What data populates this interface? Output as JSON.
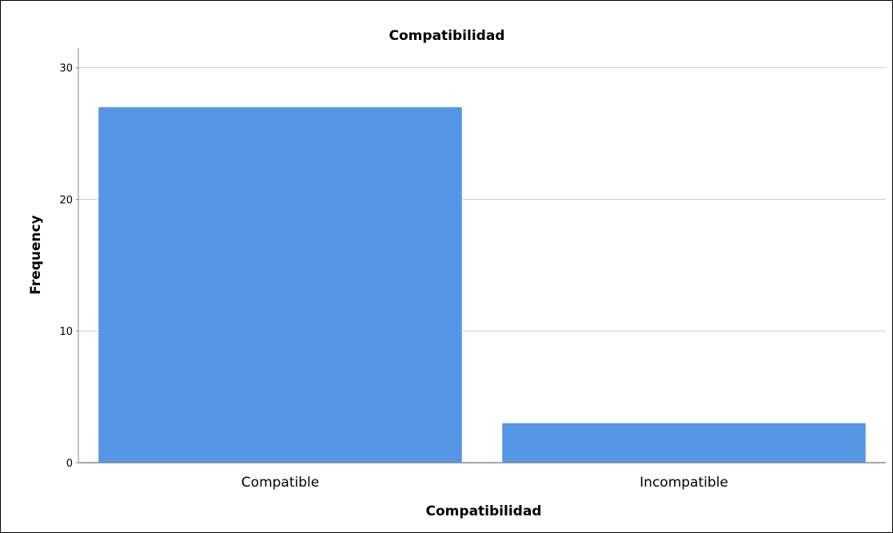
{
  "chart_data": {
    "type": "bar",
    "title": "Compatibilidad",
    "xlabel": "Compatibilidad",
    "ylabel": "Frequency",
    "categories": [
      "Compatible",
      "Incompatible"
    ],
    "values": [
      27,
      3
    ],
    "ylim": [
      0,
      31.5
    ],
    "yticks": [
      0,
      10,
      20,
      30
    ],
    "grid": true,
    "bar_color": "#5596e5",
    "gridline_color": "#cccccc",
    "axis_color": "#888888"
  }
}
